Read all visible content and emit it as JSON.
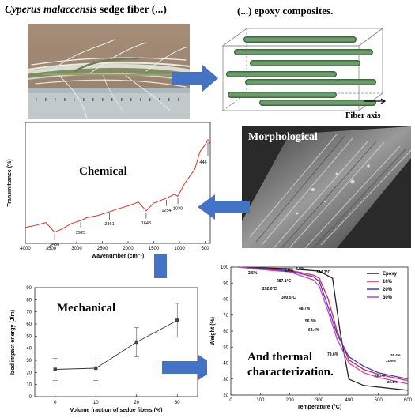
{
  "titles": {
    "fiber_title_italic": "Cyperus malaccensis",
    "fiber_title_rest": " sedge fiber (...)",
    "composite_title": "(...) epoxy composites.",
    "fiber_axis": "Fiber axis",
    "morphological": "Morphological",
    "chemical": "Chemical",
    "mechanical": "Mechanical",
    "thermal_line1": "And thermal",
    "thermal_line2": "characterization."
  },
  "chart_data": [
    {
      "type": "line",
      "xlabel": "Wavenumber (cm⁻¹)",
      "ylabel": "Transmittance (%)",
      "x_ticks": [
        "4000",
        "3500",
        "3000",
        "2500",
        "2000",
        "1500",
        "1000",
        "500"
      ],
      "xlim": [
        4000,
        400
      ],
      "x": [
        4000,
        3800,
        3600,
        3430,
        3300,
        3100,
        2923,
        2800,
        2600,
        2361,
        2200,
        2000,
        1800,
        1648,
        1500,
        1254,
        1100,
        1030,
        900,
        700,
        600,
        500,
        446,
        400
      ],
      "values": [
        10,
        12,
        15,
        5,
        8,
        14,
        17,
        20,
        22,
        26,
        29,
        32,
        36,
        27,
        35,
        40,
        44,
        42,
        55,
        70,
        88,
        95,
        100,
        96
      ],
      "annotations": [
        "3430",
        "2923",
        "2361",
        "1648",
        "1254",
        "1030",
        "446"
      ]
    },
    {
      "type": "line",
      "xlabel": "Volume fraction of sedge fibers (%)",
      "ylabel": "Izod impact energy (J/m)",
      "x": [
        0,
        10,
        20,
        30
      ],
      "values": [
        22.5,
        23.5,
        45,
        63
      ],
      "errors": [
        9,
        10,
        12,
        14
      ],
      "xlim": [
        -5,
        35
      ],
      "ylim": [
        0,
        90
      ],
      "x_ticks": [
        "0",
        "10",
        "20",
        "30"
      ],
      "y_ticks": [
        "0",
        "10",
        "20",
        "30",
        "40",
        "50",
        "60",
        "70",
        "80",
        "90"
      ]
    },
    {
      "type": "line",
      "xlabel": "Temperature (°C)",
      "ylabel": "Weight (%)",
      "xlim": [
        0,
        600
      ],
      "ylim": [
        20,
        100
      ],
      "x_ticks": [
        "0",
        "100",
        "200",
        "300",
        "400",
        "500",
        "600"
      ],
      "y_ticks": [
        "20",
        "30",
        "40",
        "50",
        "60",
        "70",
        "80",
        "90",
        "100"
      ],
      "series": [
        {
          "name": "Epoxy",
          "color": "#222222",
          "x": [
            25,
            100,
            200,
            300,
            344.7,
            370,
            400,
            450,
            500,
            550,
            600
          ],
          "values": [
            100,
            99.5,
            99,
            97.5,
            93,
            60,
            30,
            26,
            25,
            24,
            23
          ]
        },
        {
          "name": "10%",
          "color": "#e8243c",
          "x": [
            25,
            100,
            200,
            280,
            300,
            330,
            360,
            400,
            450,
            500,
            550,
            600
          ],
          "values": [
            100,
            99,
            98,
            95,
            93,
            80,
            60,
            42,
            36,
            33,
            31,
            29
          ]
        },
        {
          "name": "20%",
          "color": "#3b3bd6",
          "x": [
            25,
            100,
            200,
            280,
            300,
            330,
            360,
            400,
            450,
            500,
            550,
            600
          ],
          "values": [
            100,
            98.8,
            97.5,
            94,
            91,
            75,
            58,
            44,
            38,
            34,
            32,
            30
          ]
        },
        {
          "name": "30%",
          "color": "#c247c2",
          "x": [
            25,
            100,
            200,
            280,
            300,
            330,
            360,
            400,
            450,
            500,
            550,
            600
          ],
          "values": [
            100,
            98.5,
            97,
            92,
            88,
            72,
            55,
            40,
            34,
            31,
            29,
            27
          ]
        }
      ],
      "annotations": [
        "4.0%",
        "3.0%",
        "2.5%",
        "344.7°C",
        "287.1°C",
        "292.0°C",
        "300.5°C",
        "48.7%",
        "56.3%",
        "62.4%",
        "79.6%",
        "31.6%",
        "25.4%",
        "28.2%",
        "22.1%"
      ]
    }
  ]
}
